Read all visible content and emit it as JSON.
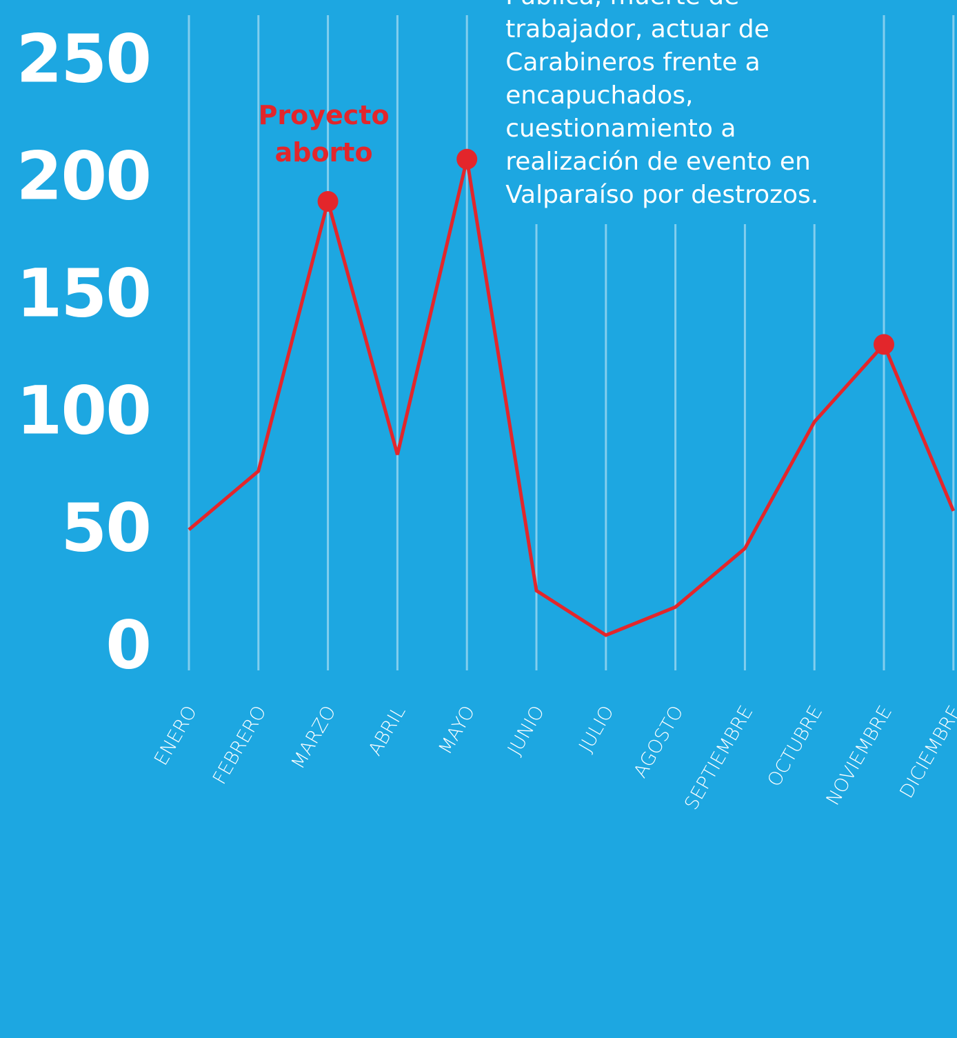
{
  "chart_data": {
    "type": "line",
    "categories": [
      "ENERO",
      "FEBRERO",
      "MARZO",
      "ABRIL",
      "MAYO",
      "JUNIO",
      "JULIO",
      "AGOSTO",
      "SEPTIEMBRE",
      "OCTUBRE",
      "NOVIEMBRE",
      "DICIEMBRE"
    ],
    "values": [
      50,
      75,
      190,
      82,
      208,
      24,
      5,
      17,
      42,
      96,
      129,
      58
    ],
    "color": "#e3262b",
    "highlight": [
      "MARZO",
      "MAYO",
      "NOVIEMBRE"
    ],
    "ylim": [
      0,
      250
    ],
    "yticks": [
      0,
      50,
      100,
      150,
      200,
      250
    ],
    "grid": true,
    "annotations": [
      {
        "category": "MARZO",
        "lines": [
          "Proyecto",
          "aborto"
        ]
      },
      {
        "category": "MAYO",
        "lines": [
          "Pública, muerte de",
          "trabajador, actuar de",
          "Carabineros frente a",
          "encapuchados,",
          "cuestionamiento a",
          "realización de evento en",
          "Valparaíso por destrozos."
        ]
      }
    ]
  }
}
